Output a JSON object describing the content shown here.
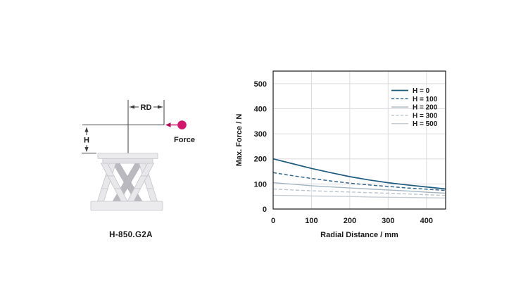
{
  "page": {
    "background": "#ffffff"
  },
  "diagram": {
    "caption": "H-850.G2A",
    "labels": {
      "rd": "RD",
      "h": "H",
      "force": "Force"
    },
    "force_color": "#d5156b"
  },
  "chart_data": {
    "type": "line",
    "title": "",
    "xlabel": "Radial Distance / mm",
    "ylabel": "Max. Force / N",
    "xlim": [
      0,
      450
    ],
    "ylim": [
      0,
      550
    ],
    "xticks": [
      0,
      100,
      200,
      300,
      400
    ],
    "yticks": [
      0,
      100,
      200,
      300,
      400,
      500
    ],
    "grid": true,
    "grid_color": "#dcdce0",
    "frame_color": "#1a1a1a",
    "text_color": "#1a1a1a",
    "legend_position": "top-right",
    "x": [
      0,
      50,
      100,
      150,
      200,
      250,
      300,
      350,
      400,
      450
    ],
    "series": [
      {
        "name": "H = 0",
        "color": "#1d5a7e",
        "dash": "",
        "width": 1.7,
        "values": [
          200,
          181,
          162,
          145,
          129,
          116,
          105,
          96,
          88,
          80
        ]
      },
      {
        "name": "H = 100",
        "color": "#35688c",
        "dash": "5,3",
        "width": 1.5,
        "values": [
          145,
          133,
          122,
          112,
          103,
          96,
          90,
          84,
          79,
          74
        ]
      },
      {
        "name": "H = 200",
        "color": "#a4b6c4",
        "dash": "",
        "width": 1.4,
        "values": [
          105,
          99,
          93,
          88,
          84,
          80,
          76,
          72,
          67,
          63
        ]
      },
      {
        "name": "H = 300",
        "color": "#b9c4cd",
        "dash": "5,3",
        "width": 1.4,
        "values": [
          80,
          76,
          73,
          70,
          68,
          65,
          63,
          60,
          57,
          54
        ]
      },
      {
        "name": "H = 500",
        "color": "#c6ced5",
        "dash": "",
        "width": 1.4,
        "values": [
          55,
          54,
          52,
          51,
          50,
          48,
          47,
          46,
          45,
          44
        ]
      }
    ]
  }
}
